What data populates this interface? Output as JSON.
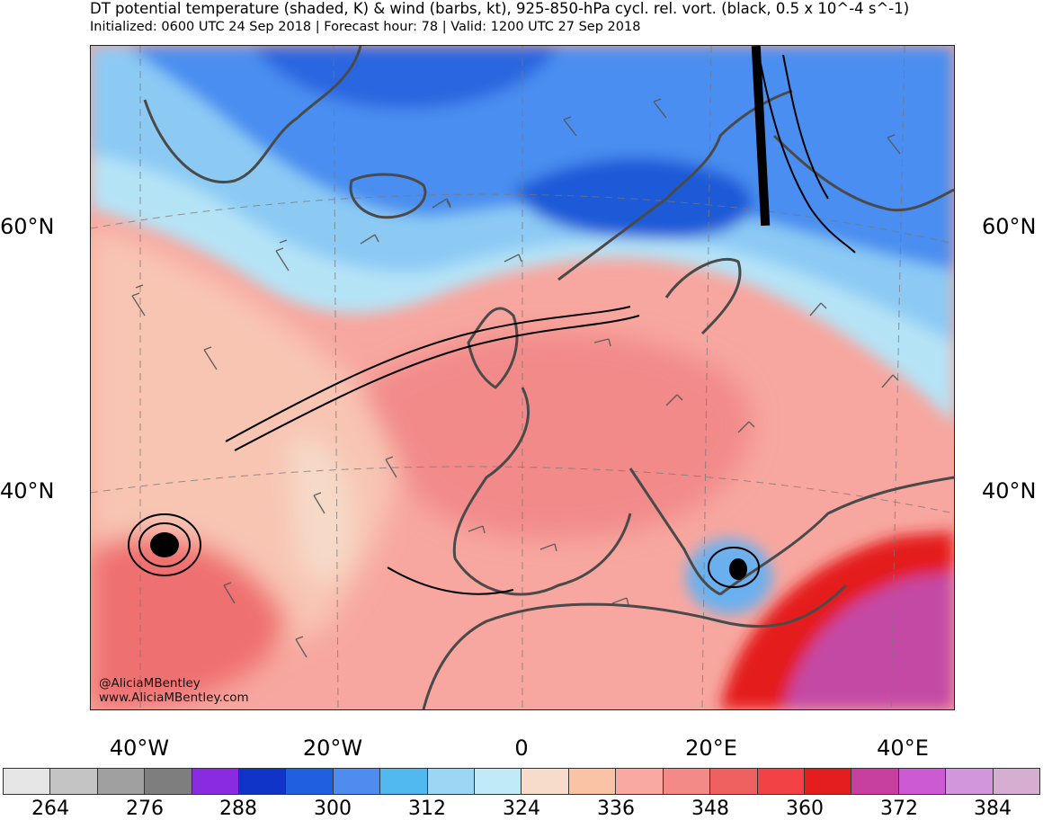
{
  "title": "DT potential temperature (shaded, K) & wind (barbs, kt), 925-850-hPa cycl. rel. vort. (black, 0.5 x 10^-4 s^-1)",
  "subtitle": "Initialized: 0600 UTC 24 Sep 2018 | Forecast hour: 78 | Valid: 1200 UTC 27 Sep 2018",
  "lat_labels": {
    "left_60": "60°N",
    "right_60": "60°N",
    "left_40": "40°N",
    "right_40": "40°N"
  },
  "lon_labels": [
    "40°W",
    "20°W",
    "0",
    "20°E",
    "40°E"
  ],
  "colorbar": {
    "colors": [
      "#e6e6e6",
      "#c4c4c4",
      "#a0a0a0",
      "#7e7e7e",
      "#8a2be2",
      "#1034c8",
      "#2060e0",
      "#4f8cf0",
      "#52b8f0",
      "#9cd6f5",
      "#c0eaf7",
      "#f7dccb",
      "#fbc3a6",
      "#f9a9a2",
      "#f48a88",
      "#ef6060",
      "#f24246",
      "#e41e1e",
      "#c8409f",
      "#cc5ad2",
      "#d296dc",
      "#d6aed2"
    ],
    "tick_labels": [
      "264",
      "276",
      "288",
      "300",
      "312",
      "324",
      "336",
      "348",
      "360",
      "372",
      "384"
    ]
  },
  "credits": {
    "handle": "@AliciaMBentley",
    "website": "www.AliciaMBentley.com"
  },
  "map_colors": {
    "cold_deep": "#1f5ad8",
    "cold": "#4a8ef0",
    "cool": "#8ccaf4",
    "cool_light": "#b5e3f6",
    "neutral": "#f6d3c0",
    "warm_light": "#f9b9a6",
    "warm": "#f48b8c",
    "warm_strong": "#ee5f60",
    "hot": "#e41e1e",
    "hot_purple": "#c44aa4",
    "coast": "#4a4a4a",
    "contour": "#000000"
  }
}
